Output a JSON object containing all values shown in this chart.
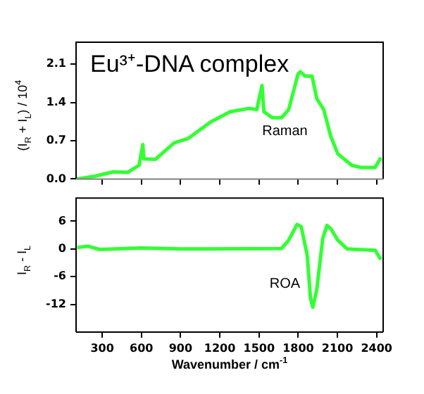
{
  "chart_data": [
    {
      "type": "line",
      "title": "Eu³⁺-DNA complex",
      "ylabel": "(I$_{R}$ + I$_{L}$) / 10$^{4}$",
      "xlim": [
        100,
        2450
      ],
      "xticks": [
        300,
        600,
        900,
        1200,
        1500,
        1800,
        2100,
        2400
      ],
      "ylim": [
        0,
        2.5
      ],
      "yticks": [
        {
          "value": 0,
          "label": "0.0"
        },
        0.7,
        1.4,
        2.1
      ],
      "tick_labels": "y",
      "marker": "none",
      "x": [
        107,
        243,
        386,
        493,
        582,
        611,
        618,
        708,
        850,
        958,
        1129,
        1280,
        1423,
        1483,
        1523,
        1537,
        1601,
        1673,
        1727,
        1799,
        1816,
        1853,
        1906,
        1942,
        1995,
        2049,
        2103,
        2210,
        2282,
        2389,
        2432
      ],
      "series": [
        {
          "name": "Raman",
          "color": "#33ff33",
          "values": [
            0,
            0.05,
            0.13,
            0.12,
            0.25,
            0.63,
            0.37,
            0.36,
            0.66,
            0.74,
            1.04,
            1.23,
            1.29,
            1.27,
            1.71,
            1.23,
            1.12,
            1.12,
            1.27,
            1.92,
            1.96,
            1.88,
            1.88,
            1.47,
            1.27,
            0.78,
            0.46,
            0.25,
            0.21,
            0.21,
            0.39
          ]
        }
      ]
    },
    {
      "type": "line",
      "ylabel": "I$_{R}$ - I$_{L}$",
      "xlabel": "Wavenumber / cm$^{-1}$",
      "xlim": [
        100,
        2450
      ],
      "xticks": [
        300,
        600,
        900,
        1200,
        1500,
        1800,
        2100,
        2400
      ],
      "ylim": [
        -18,
        11
      ],
      "yticks": [
        6,
        0,
        -6,
        -12
      ],
      "marker": "none",
      "x": [
        110,
        190,
        279,
        600,
        900,
        1137,
        1673,
        1727,
        1791,
        1823,
        1869,
        1894,
        1912,
        1942,
        1988,
        2020,
        2049,
        2103,
        2175,
        2389,
        2432
      ],
      "series": [
        {
          "name": "ROA",
          "color": "#33ff33",
          "values": [
            0.3,
            0.6,
            -0.1,
            0.2,
            0,
            0,
            0.1,
            1.9,
            5.3,
            4.8,
            -1.4,
            -10.7,
            -12.6,
            -8.8,
            2.3,
            5.1,
            4.4,
            1.9,
            0,
            -0.3,
            -2.3
          ]
        }
      ]
    }
  ]
}
